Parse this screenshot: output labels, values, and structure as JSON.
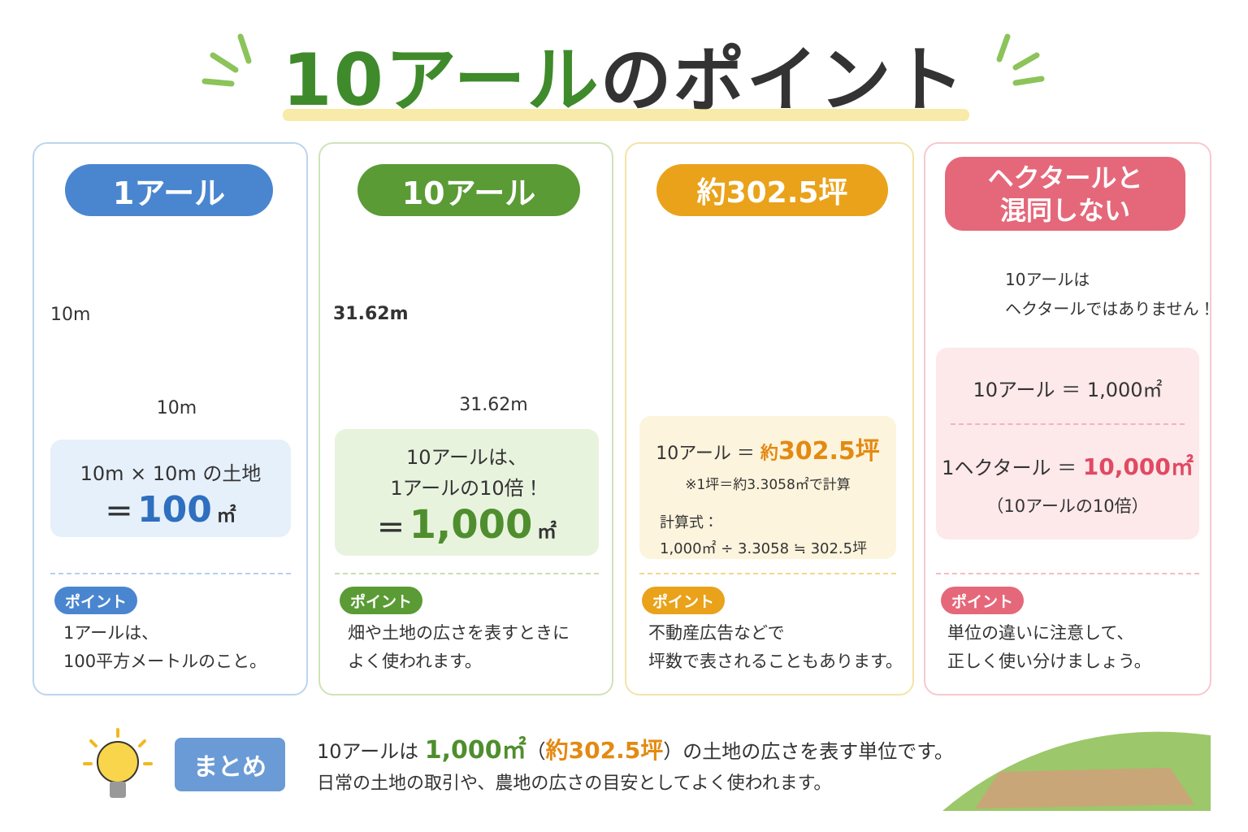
{
  "title": {
    "main": "10アール",
    "rest": "のポイント"
  },
  "cards": [
    {
      "badge": "1アール",
      "dim_v": "10m",
      "dim_h": "10m",
      "box": {
        "line1": "10m × 10m の土地",
        "eq": "＝",
        "value": "100",
        "unit": "㎡"
      },
      "point_label": "ポイント",
      "point_lines": [
        "1アールは、",
        "100平方メートルのこと。"
      ]
    },
    {
      "badge": "10アール",
      "dim_v": "31.62m",
      "dim_h": "31.62m",
      "box": {
        "line1": "10アールは、",
        "line2": "1アールの10倍！",
        "eq": "＝",
        "value": "1,000",
        "unit": "㎡"
      },
      "point_label": "ポイント",
      "point_lines": [
        "畑や土地の広さを表すときに",
        "よく使われます。"
      ]
    },
    {
      "badge": "約302.5坪",
      "box": {
        "lhs": "10アール ＝",
        "approx": "約",
        "value": "302.5坪",
        "note": "※1坪＝約3.3058㎡で計算",
        "formula_label": "計算式：",
        "formula": "1,000㎡ ÷ 3.3058 ≒ 302.5坪"
      },
      "point_label": "ポイント",
      "point_lines": [
        "不動産広告などで",
        "坪数で表されることもあります。"
      ]
    },
    {
      "badge_lines": [
        "ヘクタールと",
        "混同しない"
      ],
      "warning": [
        "10アールは",
        "ヘクタールではありません！"
      ],
      "box": {
        "rows": [
          {
            "lhs": "10アール ＝",
            "rhs": "1,000㎡"
          },
          {
            "lhs": "1ヘクタール ＝",
            "rhs": "10,000㎡"
          }
        ],
        "note": "（10アールの10倍）"
      },
      "point_label": "ポイント",
      "point_lines": [
        "単位の違いに注意して、",
        "正しく使い分けましょう。"
      ]
    }
  ],
  "summary": {
    "label": "まとめ",
    "line1": [
      "10アールは ",
      "1,000㎡",
      "（",
      "約302.5坪",
      "）の土地の広さを表す単位です。"
    ],
    "line2": "日常の土地の取引や、農地の広さの目安としてよく使われます。"
  }
}
